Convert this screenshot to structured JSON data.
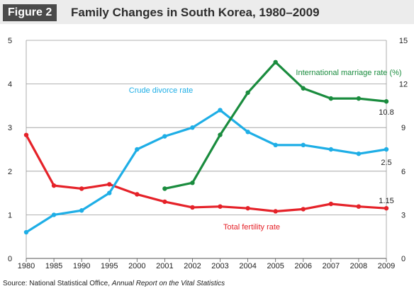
{
  "figure_label": "Figure 2",
  "title": "Family Changes in South Korea, 1980–2009",
  "source": {
    "prefix": "Source: National Statistical Office, ",
    "italic": "Annual Report on the Vital Statistics"
  },
  "chart_data": {
    "type": "line",
    "title": "Family Changes in South Korea, 1980–2009",
    "categories": [
      "1980",
      "1985",
      "1990",
      "1995",
      "2000",
      "2001",
      "2002",
      "2003",
      "2004",
      "2005",
      "2006",
      "2007",
      "2008",
      "2009"
    ],
    "y_left": {
      "min": 0,
      "max": 5,
      "ticks": [
        0,
        1,
        2,
        3,
        4,
        5
      ]
    },
    "y_right": {
      "min": 0,
      "max": 15,
      "ticks": [
        0,
        3,
        6,
        9,
        12,
        15
      ]
    },
    "grid": true,
    "series": [
      {
        "name": "Total fertility rate",
        "axis": "left",
        "color": "#e52229",
        "values": [
          2.83,
          1.67,
          1.6,
          1.7,
          1.47,
          1.3,
          1.17,
          1.19,
          1.15,
          1.08,
          1.13,
          1.25,
          1.19,
          1.15
        ],
        "end_label": "1.15"
      },
      {
        "name": "Crude divorce rate",
        "axis": "left",
        "color": "#1eaee6",
        "values": [
          0.6,
          1.0,
          1.1,
          1.5,
          2.5,
          2.8,
          3.0,
          3.4,
          2.9,
          2.6,
          2.6,
          2.5,
          2.4,
          2.5
        ],
        "end_label": "2.5"
      },
      {
        "name": "International marriage rate (%)",
        "axis": "right",
        "color": "#1a8c3e",
        "values": [
          null,
          null,
          null,
          null,
          null,
          4.8,
          5.2,
          8.5,
          11.4,
          13.5,
          11.7,
          11.0,
          11.0,
          10.8
        ],
        "end_label": "10.8"
      }
    ]
  }
}
